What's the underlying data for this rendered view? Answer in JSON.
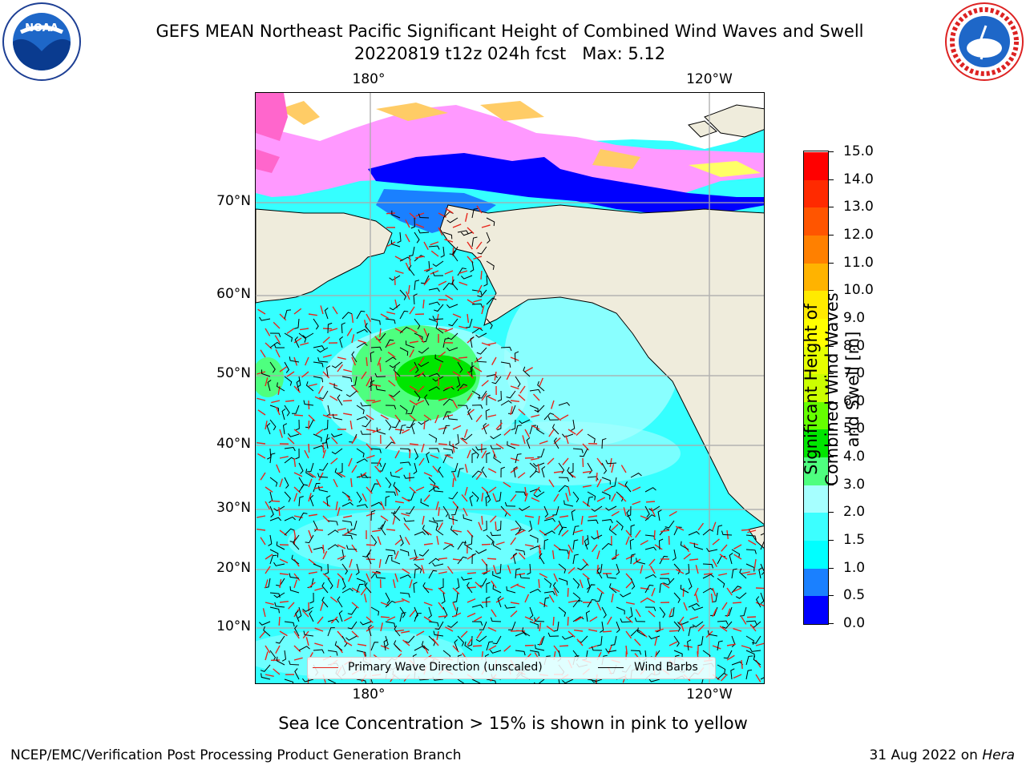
{
  "header": {
    "title_line1": "GEFS MEAN Northeast Pacific Significant Height of Combined Wind Waves and Swell",
    "title_line2": "20220819 t12z 024h fcst   Max: 5.12"
  },
  "logos": {
    "left": "noaa-logo",
    "right": "nws-logo",
    "left_text": "NOAA",
    "right_text": "NATIONAL WEATHER SERVICE"
  },
  "map": {
    "lon_labels": [
      "180°",
      "120°W"
    ],
    "lat_labels": [
      "70°N",
      "60°N",
      "50°N",
      "40°N",
      "30°N",
      "20°N",
      "10°N"
    ],
    "ocean_color": "#35ffff",
    "land_color": "#efecdc",
    "ice_colors": [
      "#ff66cc",
      "#ff99ff",
      "#ffcc66",
      "#ffff66"
    ]
  },
  "legend": {
    "wave_direction_label": "Primary Wave Direction (unscaled)",
    "wind_barbs_label": "Wind Barbs",
    "wave_color": "#e8261c",
    "barb_color": "#000000"
  },
  "colorbar": {
    "title": "Significant Height of Combined Wind Waves and Swell [m]",
    "ticks": [
      "0.0",
      "0.5",
      "1.0",
      "1.5",
      "2.0",
      "3.0",
      "4.0",
      "5.0",
      "6.0",
      "7.0",
      "8.0",
      "9.0",
      "10.0",
      "11.0",
      "12.0",
      "13.0",
      "14.0",
      "15.0"
    ],
    "colors": [
      "#0000ff",
      "#1a80ff",
      "#00ffff",
      "#3cffff",
      "#a6ffff",
      "#4eff7f",
      "#00e600",
      "#66ff00",
      "#ccff00",
      "#e6ff00",
      "#ffff00",
      "#ffea00",
      "#ffb300",
      "#ff8000",
      "#ff5500",
      "#ff2a00",
      "#ff0000"
    ]
  },
  "footer": {
    "note": "Sea Ice Concentration > 15% is shown in pink to yellow",
    "credit_left": "NCEP/EMC/Verification Post Processing Product Generation Branch",
    "credit_date": "31 Aug 2022 on ",
    "credit_host": "Hera"
  }
}
